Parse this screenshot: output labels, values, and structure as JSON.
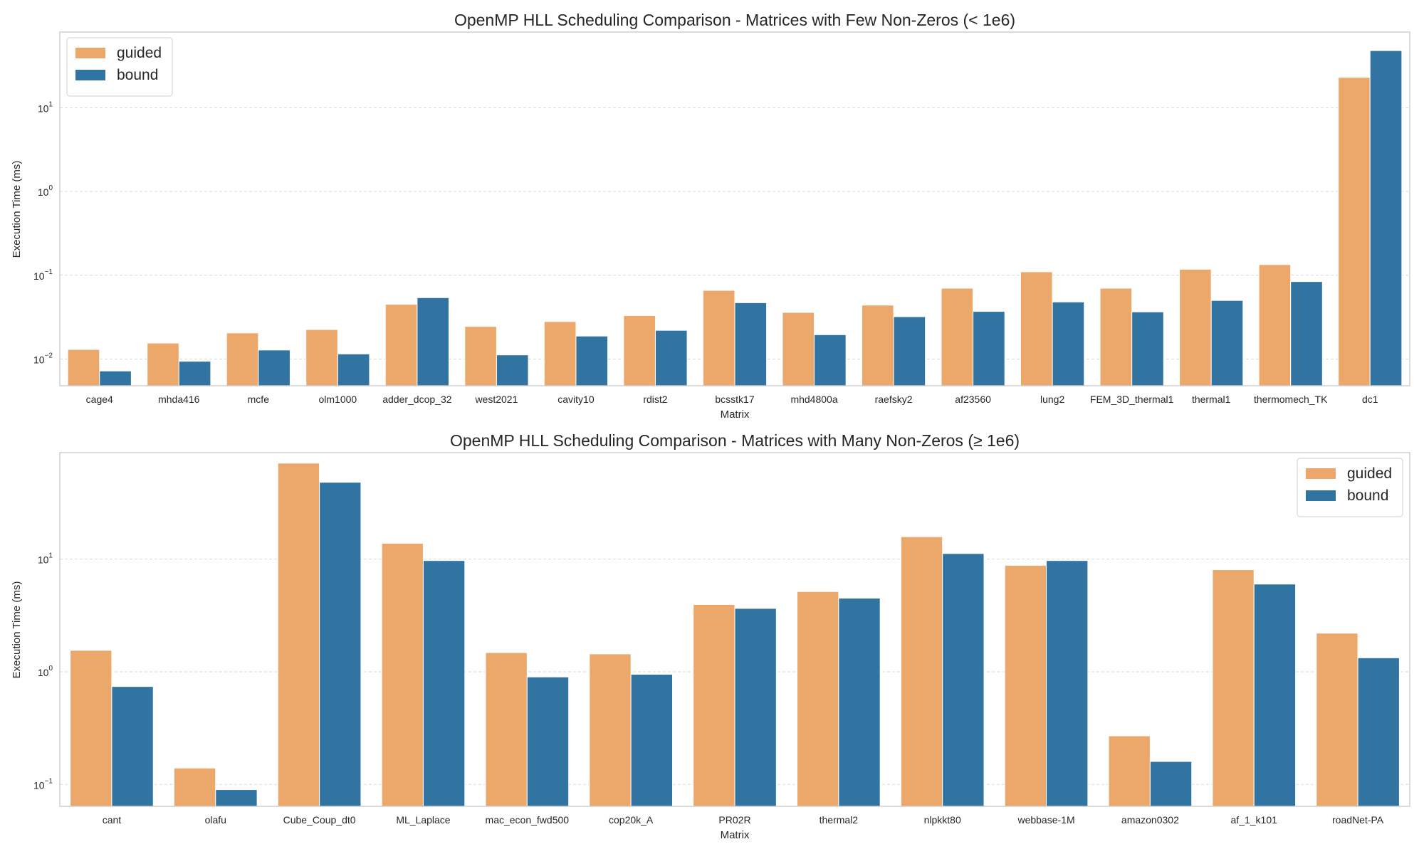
{
  "colors": {
    "guided": "#eca86a",
    "bound": "#3174a1"
  },
  "chart_data": [
    {
      "type": "bar",
      "title": "OpenMP HLL Scheduling Comparison - Matrices with Few Non-Zeros (< 1e6)",
      "xlabel": "Matrix",
      "ylabel": "Execution Time (ms)",
      "yscale": "log",
      "ylim": [
        0.0048,
        80
      ],
      "yticks": [
        0.01,
        0.1,
        1,
        10
      ],
      "ytick_labels": [
        {
          "base": "10",
          "exp": "−2"
        },
        {
          "base": "10",
          "exp": "−1"
        },
        {
          "base": "10",
          "exp": "0"
        },
        {
          "base": "10",
          "exp": "1"
        }
      ],
      "grid": "y",
      "legend": {
        "position": "top-left",
        "entries": [
          "guided",
          "bound"
        ]
      },
      "categories": [
        "cage4",
        "mhda416",
        "mcfe",
        "olm1000",
        "adder_dcop_32",
        "west2021",
        "cavity10",
        "rdist2",
        "bcsstk17",
        "mhd4800a",
        "raefsky2",
        "af23560",
        "lung2",
        "FEM_3D_thermal1",
        "thermal1",
        "thermomech_TK",
        "dc1"
      ],
      "series": [
        {
          "name": "guided",
          "values": [
            0.013,
            0.0155,
            0.0205,
            0.0225,
            0.045,
            0.0245,
            0.028,
            0.033,
            0.066,
            0.036,
            0.044,
            0.07,
            0.11,
            0.07,
            0.118,
            0.134,
            23
          ]
        },
        {
          "name": "bound",
          "values": [
            0.0072,
            0.0094,
            0.0128,
            0.0115,
            0.054,
            0.0112,
            0.0188,
            0.022,
            0.047,
            0.0195,
            0.032,
            0.037,
            0.048,
            0.0365,
            0.05,
            0.084,
            48
          ]
        }
      ]
    },
    {
      "type": "bar",
      "title": "OpenMP HLL Scheduling Comparison - Matrices with Many Non-Zeros (≥ 1e6)",
      "xlabel": "Matrix",
      "ylabel": "Execution Time (ms)",
      "yscale": "log",
      "ylim": [
        0.064,
        88
      ],
      "yticks": [
        0.1,
        1,
        10
      ],
      "ytick_labels": [
        {
          "base": "10",
          "exp": "−1"
        },
        {
          "base": "10",
          "exp": "0"
        },
        {
          "base": "10",
          "exp": "1"
        }
      ],
      "grid": "y",
      "legend": {
        "position": "top-right",
        "entries": [
          "guided",
          "bound"
        ]
      },
      "categories": [
        "cant",
        "olafu",
        "Cube_Coup_dt0",
        "ML_Laplace",
        "mac_econ_fwd500",
        "cop20k_A",
        "PR02R",
        "thermal2",
        "nlpkkt80",
        "webbase-1M",
        "amazon0302",
        "af_1_k101",
        "roadNet-PA"
      ],
      "series": [
        {
          "name": "guided",
          "values": [
            1.55,
            0.14,
            71,
            13.8,
            1.48,
            1.44,
            3.95,
            5.15,
            15.8,
            8.8,
            0.27,
            8.05,
            2.2
          ]
        },
        {
          "name": "bound",
          "values": [
            0.74,
            0.09,
            48,
            9.7,
            0.9,
            0.95,
            3.65,
            4.5,
            11.2,
            9.7,
            0.16,
            6.0,
            1.33
          ]
        }
      ]
    }
  ]
}
